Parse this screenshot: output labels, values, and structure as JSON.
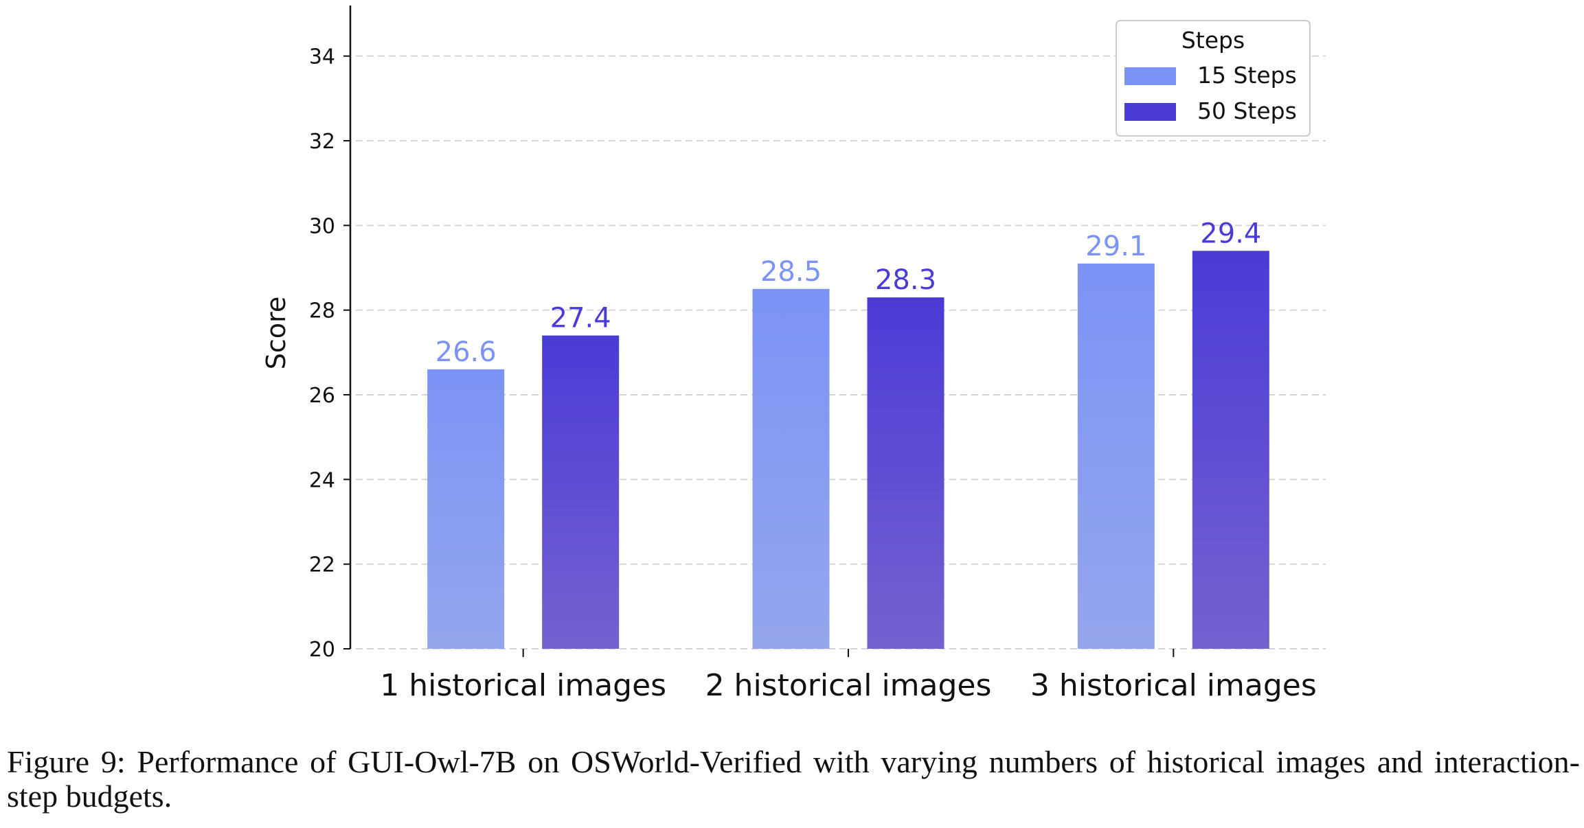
{
  "chart_data": {
    "type": "bar",
    "categories": [
      "1 historical images",
      "2 historical images",
      "3 historical images"
    ],
    "series": [
      {
        "name": "15 Steps",
        "values": [
          26.6,
          28.5,
          29.1
        ],
        "color": "#7b93f5",
        "color_light": "#95a6ee"
      },
      {
        "name": "50 Steps",
        "values": [
          27.4,
          28.3,
          29.4
        ],
        "color": "#4b3bd6",
        "color_light": "#7462d0"
      }
    ],
    "xlabel": "",
    "ylabel": "Score",
    "ylim": [
      20,
      35
    ],
    "yticks": [
      20,
      22,
      24,
      26,
      28,
      30,
      32,
      34
    ],
    "grid": "horizontal dashed",
    "legend": {
      "title": "Steps",
      "placement": "top-right"
    }
  },
  "caption": "Figure 9: Performance of GUI-Owl-7B on OSWorld-Verified with varying numbers of historical images and interaction-step budgets."
}
